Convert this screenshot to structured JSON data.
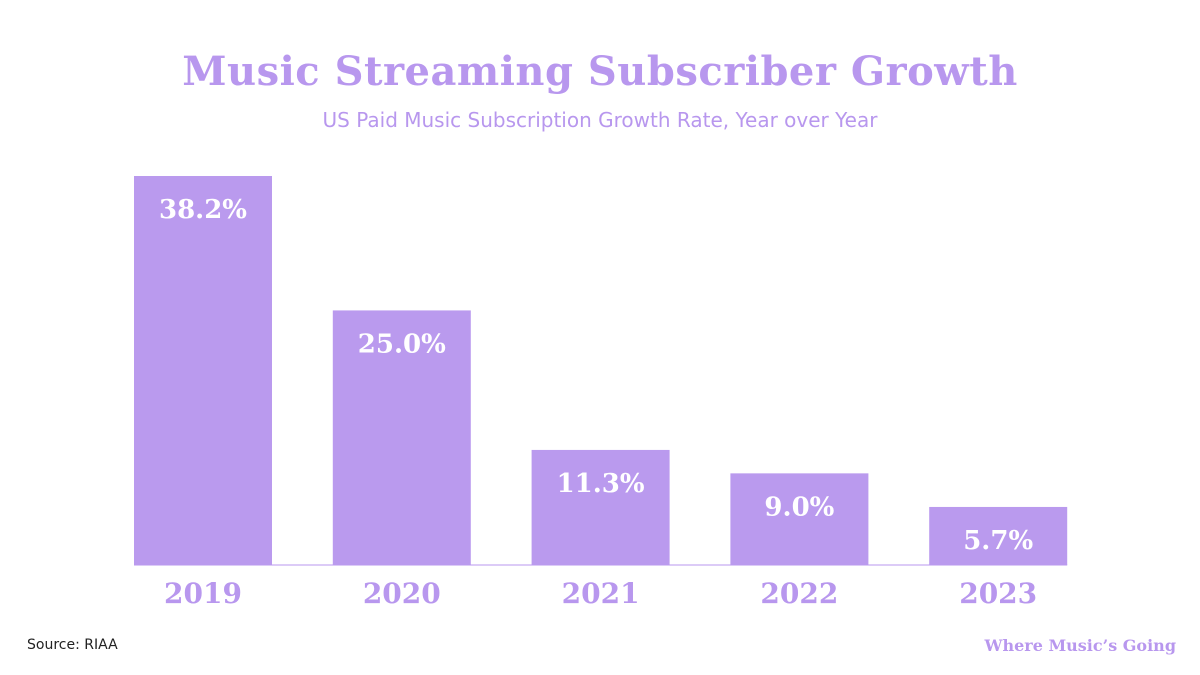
{
  "chart_data": {
    "type": "bar",
    "title": "Music Streaming Subscriber Growth",
    "subtitle": "US Paid Music Subscription Growth Rate, Year over Year",
    "categories": [
      "2019",
      "2020",
      "2021",
      "2022",
      "2023"
    ],
    "values": [
      38.2,
      25.0,
      11.3,
      9.0,
      5.7
    ],
    "data_labels": [
      "38.2%",
      "25.0%",
      "11.3%",
      "9.0%",
      "5.7%"
    ],
    "xlabel": "",
    "ylabel": "",
    "ylim": [
      0,
      38.2
    ],
    "grid": false,
    "legend": "none",
    "colors": {
      "bar": "#BA9AEE",
      "label": "#ffffff",
      "text": "#B897EE",
      "axis": "#DCCBF7"
    }
  },
  "footer": {
    "source": "Source: RIAA",
    "brand": "Where Music’s Going"
  }
}
